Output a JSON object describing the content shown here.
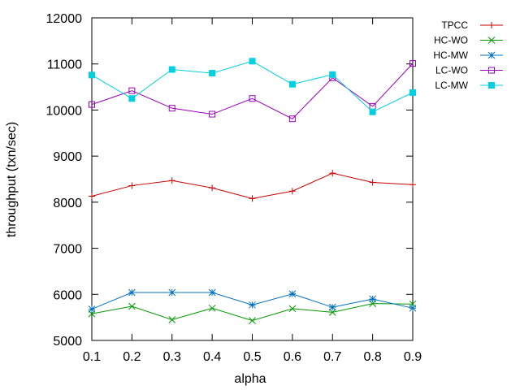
{
  "chart_data": {
    "type": "line",
    "title": "",
    "xlabel": "alpha",
    "ylabel": "throughput (txn/sec)",
    "x": [
      0.1,
      0.2,
      0.3,
      0.4,
      0.5,
      0.6,
      0.7,
      0.8,
      0.9
    ],
    "x_ticks": [
      "0.1",
      "0.2",
      "0.3",
      "0.4",
      "0.5",
      "0.6",
      "0.7",
      "0.8",
      "0.9"
    ],
    "xlim": [
      0.1,
      0.9
    ],
    "ylim": [
      5000,
      12000
    ],
    "y_ticks": [
      "5000",
      "6000",
      "7000",
      "8000",
      "9000",
      "10000",
      "11000",
      "12000"
    ],
    "grid": false,
    "legend_position": "outside-top-right",
    "series": [
      {
        "name": "TPCC",
        "color": "#cc0000",
        "marker": "plus",
        "values": [
          8130,
          8360,
          8470,
          8310,
          8080,
          8240,
          8630,
          8430,
          8380
        ]
      },
      {
        "name": "HC-WO",
        "color": "#009900",
        "marker": "cross",
        "values": [
          5580,
          5740,
          5450,
          5700,
          5430,
          5690,
          5610,
          5800,
          5790
        ]
      },
      {
        "name": "HC-MW",
        "color": "#0070c0",
        "marker": "star",
        "values": [
          5680,
          6040,
          6040,
          6040,
          5770,
          6010,
          5720,
          5900,
          5700
        ]
      },
      {
        "name": "LC-WO",
        "color": "#9900bb",
        "marker": "open-square",
        "values": [
          10120,
          10420,
          10040,
          9910,
          10250,
          9810,
          10700,
          10080,
          11010
        ]
      },
      {
        "name": "LC-MW",
        "color": "#00d0e0",
        "marker": "filled-square",
        "values": [
          10760,
          10250,
          10880,
          10800,
          11060,
          10560,
          10770,
          9960,
          10380
        ]
      }
    ]
  }
}
